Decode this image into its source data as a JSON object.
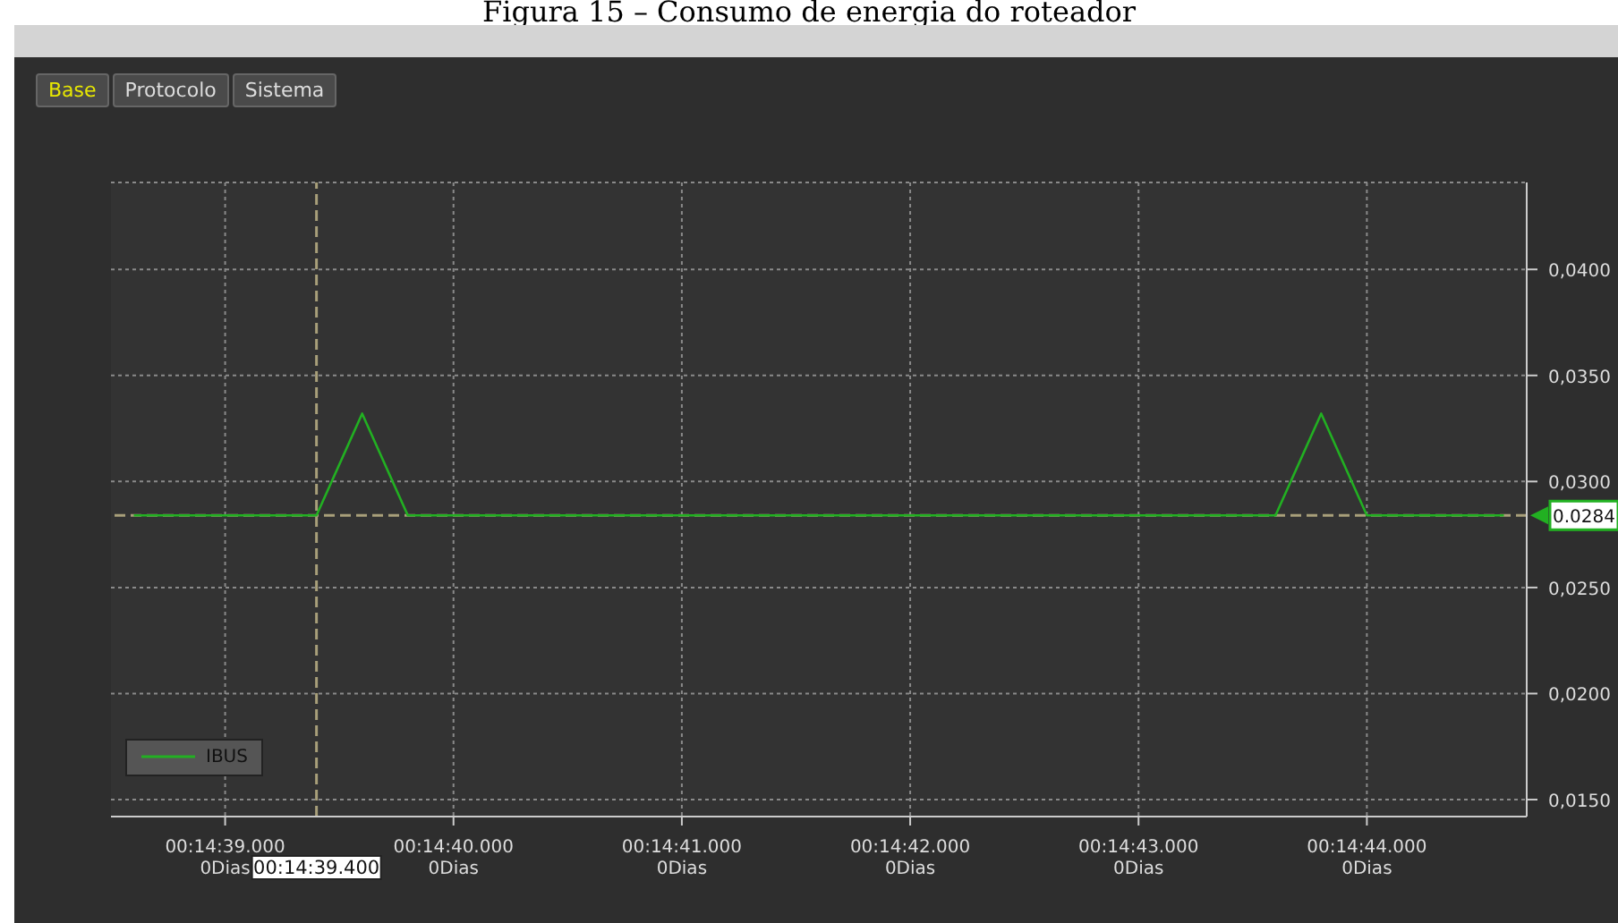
{
  "chart_data": {
    "type": "line",
    "title": "Figura 15 – Consumo de energia do roteador",
    "annotations": [
      "Base",
      "Protocolo",
      "Sistema"
    ],
    "categories": [
      null,
      null,
      "00:14:39.000\n0Dias",
      null,
      "00:14:39.400",
      null,
      null,
      "00:14:40.000\n0Dias",
      null,
      null,
      null,
      null,
      "00:14:41.000\n0Dias",
      null,
      null,
      null,
      null,
      "00:14:42.000\n0Dias",
      null,
      null,
      null,
      null,
      "00:14:43.000\n0Dias",
      null,
      null,
      null,
      null,
      "00:14:44.000\n0Dias",
      null,
      null,
      null
    ],
    "series": [
      {
        "name": "IBUS",
        "color": "#22b022",
        "values": [
          0.0284,
          0.0284,
          0.0284,
          0.0284,
          0.0284,
          0.0332,
          0.0284,
          0.0284,
          0.0284,
          0.0284,
          0.0284,
          0.0284,
          0.0284,
          0.0284,
          0.0284,
          0.0284,
          0.0284,
          0.0284,
          0.0284,
          0.0284,
          0.0284,
          0.0284,
          0.0284,
          0.0284,
          0.0284,
          0.0284,
          0.0332,
          0.0284,
          0.0284,
          0.0284,
          0.0284
        ]
      }
    ],
    "ylim": [
      0.0142,
      0.0441
    ],
    "yticks": [
      {
        "value": 0.015,
        "label": "0,0150"
      },
      {
        "value": 0.02,
        "label": "0,0200"
      },
      {
        "value": 0.025,
        "label": "0,0250"
      },
      {
        "value": 0.03,
        "label": "0,0300"
      },
      {
        "value": 0.035,
        "label": "0,0350"
      },
      {
        "value": 0.04,
        "label": "0,0400"
      }
    ],
    "ref_lines": [
      {
        "axis": "x",
        "value": "00:14:39.400",
        "color": "#a89f7a",
        "line_style": "dashed"
      },
      {
        "axis": "y",
        "value": 0.0284,
        "label": "0.0284",
        "color": "#a89f7a",
        "line_style": "dashed"
      }
    ],
    "grid": true,
    "legend": "bottom left",
    "marker": "none",
    "line_style": "solid"
  }
}
